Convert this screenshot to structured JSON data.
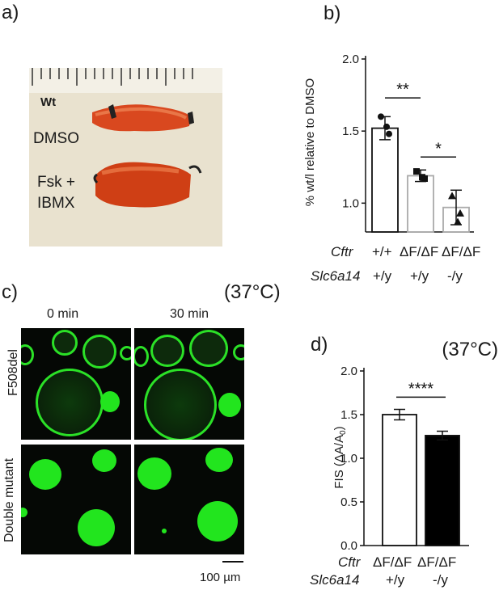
{
  "panel_a": {
    "label": "a)",
    "photo_labels": {
      "wt": "Wt",
      "dmso": "DMSO",
      "fsk_line1": "Fsk +",
      "fsk_line2": "IBMX"
    }
  },
  "panel_c": {
    "label": "c)",
    "temperature": "(37°C)",
    "col_headers": [
      "0 min",
      "30 min"
    ],
    "row_labels": [
      "F508del",
      "Double mutant"
    ],
    "scale_bar": "100 µm"
  },
  "genotype_labels": {
    "cftr": "Cftr",
    "slc": "Slc6a14",
    "b_cftr": [
      "+/+",
      "ΔF/ΔF",
      "ΔF/ΔF"
    ],
    "b_slc": [
      "+/y",
      "+/y",
      "-/y"
    ],
    "d_cftr": [
      "ΔF/ΔF",
      "ΔF/ΔF"
    ],
    "d_slc": [
      "+/y",
      "-/y"
    ]
  },
  "colors": {
    "fluorescence": "#22e51e",
    "bar_gray": "#aaaaaa",
    "bar_black": "#000000"
  },
  "chart_data": [
    {
      "panel": "b)",
      "type": "bar",
      "ylabel": "% wt/l relative to DMSO",
      "ylim": [
        0.8,
        2.0
      ],
      "yticks": [
        "1.0",
        "1.5",
        "2.0"
      ],
      "categories": [
        "+/+ | +/y",
        "ΔF/ΔF | +/y",
        "ΔF/ΔF | -/y"
      ],
      "values": [
        1.52,
        1.19,
        0.97
      ],
      "errors": [
        0.08,
        0.04,
        0.12
      ],
      "points": [
        [
          1.6,
          1.48,
          1.53
        ],
        [
          1.22,
          1.17,
          1.18
        ],
        [
          1.05,
          0.93,
          0.87
        ]
      ],
      "markers": [
        "circle",
        "square",
        "triangle"
      ],
      "significance": [
        {
          "from": 0,
          "to": 1,
          "y": 1.73,
          "label": "**"
        },
        {
          "from": 1,
          "to": 2,
          "y": 1.32,
          "label": "*"
        }
      ]
    },
    {
      "panel": "d)",
      "type": "bar",
      "annotation": "(37°C)",
      "ylabel": "FIS (ΔA/A0)",
      "ylim": [
        0.0,
        2.0
      ],
      "yticks": [
        "0.0",
        "0.5",
        "1.0",
        "1.5",
        "2.0"
      ],
      "categories": [
        "ΔF/ΔF | +/y",
        "ΔF/ΔF | -/y"
      ],
      "values": [
        1.5,
        1.26
      ],
      "errors": [
        0.06,
        0.05
      ],
      "fills": [
        "white",
        "black"
      ],
      "significance": [
        {
          "from": 0,
          "to": 1,
          "y": 1.7,
          "label": "****"
        }
      ]
    }
  ]
}
